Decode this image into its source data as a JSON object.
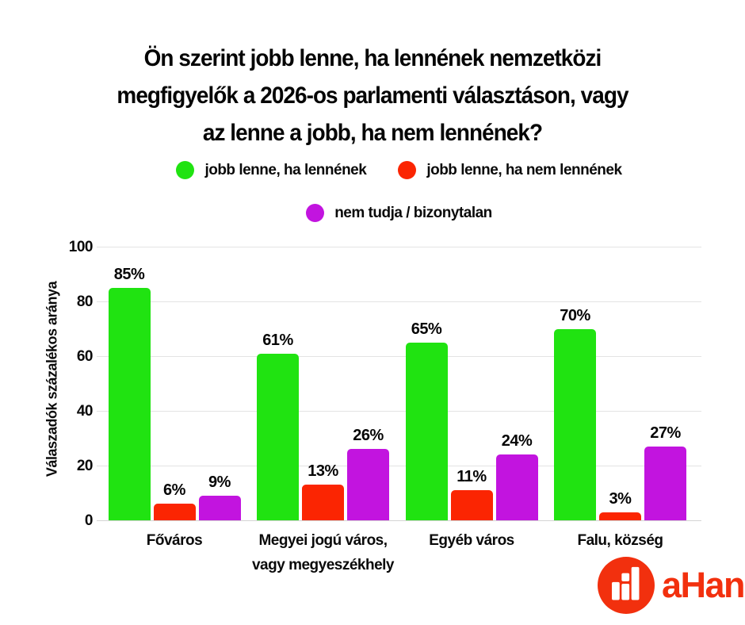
{
  "title": "Ön szerint jobb lenne, ha lennének nemzetközi\nmegfigyelők a 2026-os parlamenti választáson, vagy\naz lenne a jobb, ha nem lennének?",
  "legend": [
    {
      "label": "jobb lenne, ha lennének",
      "color": "#20e311"
    },
    {
      "label": "jobb lenne, ha nem lennének",
      "color": "#fb2502"
    },
    {
      "label": "nem tudja / bizonytalan",
      "color": "#c214df"
    }
  ],
  "chart_data": {
    "type": "bar",
    "title": "Ön szerint jobb lenne, ha lennének nemzetközi megfigyelők a 2026-os parlamenti választáson, vagy az lenne a jobb, ha nem lennének?",
    "categories": [
      "Főváros",
      "Megyei jogú város,\nvagy megyeszékhely",
      "Egyéb város",
      "Falu, község"
    ],
    "series": [
      {
        "name": "jobb lenne, ha lennének",
        "color": "#20e311",
        "values": [
          85,
          61,
          65,
          70
        ]
      },
      {
        "name": "jobb lenne, ha nem lennének",
        "color": "#fb2502",
        "values": [
          6,
          13,
          11,
          3
        ]
      },
      {
        "name": "nem tudja / bizonytalan",
        "color": "#c214df",
        "values": [
          9,
          26,
          24,
          27
        ]
      }
    ],
    "xlabel": "",
    "ylabel": "Válaszadók százalékos aránya",
    "ylim": [
      0,
      100
    ],
    "yticks": [
      0,
      20,
      40,
      60,
      80,
      100
    ],
    "grid": true,
    "legend_position": "top",
    "value_suffix": "%"
  },
  "logo": {
    "text": "aHang",
    "color": "#f2300e",
    "icon": "bar-chart-circle-icon"
  }
}
